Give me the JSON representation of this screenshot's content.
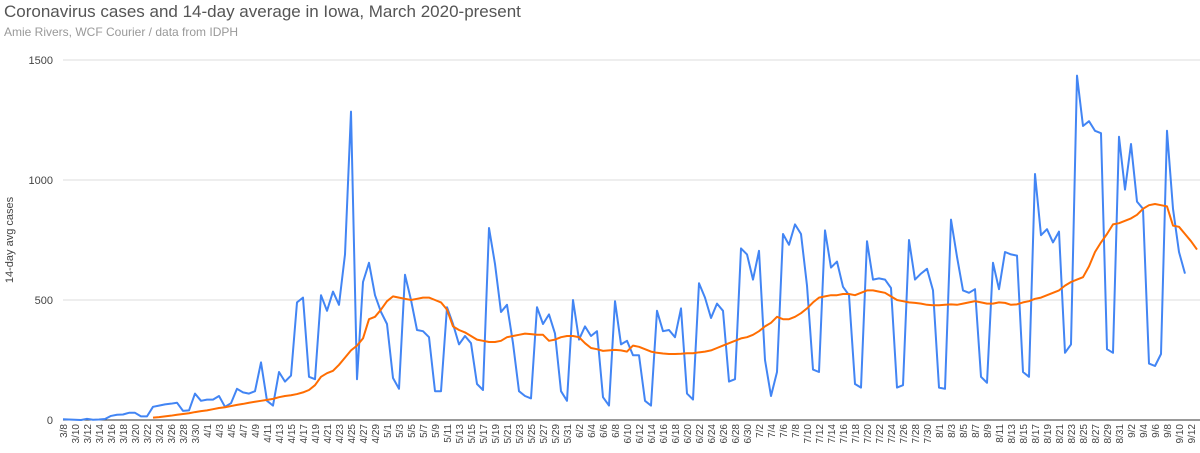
{
  "chart_data": {
    "type": "line",
    "title": "Coronavirus cases and 14-day average in Iowa, March 2020-present",
    "subtitle": "Amie Rivers, WCF Courier / data from IDPH",
    "y_label": "14-day avg cases",
    "categories": [
      "3/8",
      null,
      "3/10",
      null,
      "3/12",
      null,
      "3/14",
      null,
      "3/16",
      null,
      "3/18",
      null,
      "3/20",
      null,
      "3/22",
      null,
      "3/24",
      null,
      "3/26",
      null,
      "3/28",
      null,
      "3/30",
      null,
      "4/1",
      null,
      "4/3",
      null,
      "4/5",
      null,
      "4/7",
      null,
      "4/9",
      null,
      "4/11",
      null,
      "4/13",
      null,
      "4/15",
      null,
      "4/17",
      null,
      "4/19",
      null,
      "4/21",
      null,
      "4/23",
      null,
      "4/25",
      null,
      "4/27",
      null,
      "4/29",
      null,
      "5/1",
      null,
      "5/3",
      null,
      "5/5",
      null,
      "5/7",
      null,
      "5/9",
      null,
      "5/11",
      null,
      "5/13",
      null,
      "5/15",
      null,
      "5/17",
      null,
      "5/19",
      null,
      "5/21",
      null,
      "5/23",
      null,
      "5/25",
      null,
      "5/27",
      null,
      "5/29",
      null,
      "5/31",
      null,
      "6/2",
      null,
      "6/4",
      null,
      "6/6",
      null,
      "6/8",
      null,
      "6/10",
      null,
      "6/12",
      null,
      "6/14",
      null,
      "6/16",
      null,
      "6/18",
      null,
      "6/20",
      null,
      "6/22",
      null,
      "6/24",
      null,
      "6/26",
      null,
      "6/28",
      null,
      "6/30",
      null,
      "7/2",
      null,
      "7/4",
      null,
      "7/6",
      null,
      "7/8",
      null,
      "7/10",
      null,
      "7/12",
      null,
      "7/14",
      null,
      "7/16",
      null,
      "7/18",
      null,
      "7/20",
      null,
      "7/22",
      null,
      "7/24",
      null,
      "7/26",
      null,
      "7/28",
      null,
      "7/30",
      null,
      "8/1",
      null,
      "8/3",
      null,
      "8/5",
      null,
      "8/7",
      null,
      "8/9",
      null,
      "8/11",
      null,
      "8/13",
      null,
      "8/15",
      null,
      "8/17",
      null,
      "8/19",
      null,
      "8/21",
      null,
      "8/23",
      null,
      "8/25",
      null,
      "8/27",
      null,
      "8/29",
      null,
      "8/31",
      null,
      "9/2",
      null,
      "9/4",
      null,
      "9/6",
      null,
      "9/8",
      null,
      "9/10",
      null,
      "9/12",
      null
    ],
    "series": [
      {
        "color": "#4285f4",
        "values": [
          3,
          2,
          1,
          0,
          5,
          1,
          2,
          4,
          17,
          22,
          23,
          30,
          30,
          15,
          15,
          55,
          60,
          65,
          68,
          72,
          38,
          40,
          110,
          80,
          85,
          85,
          100,
          55,
          70,
          130,
          115,
          110,
          120,
          240,
          80,
          60,
          200,
          160,
          185,
          490,
          510,
          180,
          170,
          520,
          455,
          535,
          480,
          690,
          1285,
          170,
          575,
          655,
          520,
          450,
          400,
          175,
          130,
          605,
          500,
          375,
          370,
          345,
          120,
          120,
          470,
          400,
          315,
          350,
          320,
          150,
          125,
          800,
          650,
          450,
          480,
          320,
          120,
          100,
          90,
          470,
          400,
          440,
          360,
          120,
          80,
          500,
          335,
          390,
          350,
          370,
          95,
          60,
          495,
          315,
          330,
          270,
          270,
          80,
          60,
          455,
          370,
          375,
          345,
          465,
          110,
          85,
          570,
          510,
          425,
          485,
          455,
          160,
          170,
          715,
          690,
          585,
          705,
          250,
          100,
          200,
          775,
          730,
          815,
          775,
          560,
          210,
          200,
          790,
          635,
          660,
          555,
          520,
          150,
          135,
          745,
          585,
          590,
          585,
          550,
          135,
          145,
          750,
          585,
          610,
          630,
          540,
          135,
          130,
          835,
          680,
          540,
          530,
          545,
          180,
          155,
          655,
          545,
          700,
          690,
          685,
          200,
          180,
          1025,
          770,
          795,
          740,
          785,
          280,
          315,
          1435,
          1225,
          1245,
          1205,
          1195,
          295,
          280,
          1180,
          960,
          1150,
          910,
          880,
          235,
          225,
          275,
          1205,
          880,
          700,
          610,
          null,
          null
        ]
      },
      {
        "color": "#ff6d01",
        "values": [
          null,
          null,
          null,
          null,
          null,
          null,
          null,
          null,
          null,
          null,
          null,
          null,
          null,
          null,
          null,
          10,
          12,
          15,
          18,
          22,
          25,
          28,
          33,
          37,
          40,
          45,
          50,
          53,
          58,
          63,
          67,
          72,
          76,
          80,
          84,
          88,
          95,
          100,
          103,
          108,
          115,
          125,
          145,
          180,
          195,
          205,
          230,
          260,
          290,
          310,
          340,
          420,
          430,
          460,
          495,
          515,
          510,
          505,
          500,
          505,
          510,
          510,
          500,
          490,
          460,
          390,
          375,
          365,
          350,
          335,
          330,
          325,
          325,
          330,
          345,
          350,
          355,
          360,
          358,
          355,
          355,
          330,
          335,
          345,
          350,
          350,
          345,
          320,
          300,
          295,
          288,
          290,
          292,
          290,
          285,
          310,
          305,
          295,
          285,
          280,
          277,
          275,
          275,
          276,
          278,
          278,
          282,
          285,
          290,
          300,
          310,
          320,
          330,
          340,
          345,
          355,
          370,
          390,
          405,
          430,
          420,
          420,
          430,
          445,
          465,
          490,
          510,
          515,
          520,
          520,
          525,
          525,
          520,
          530,
          540,
          540,
          535,
          530,
          515,
          500,
          495,
          490,
          488,
          485,
          480,
          478,
          478,
          480,
          482,
          480,
          485,
          490,
          495,
          490,
          485,
          485,
          490,
          488,
          480,
          482,
          490,
          495,
          505,
          510,
          520,
          530,
          540,
          560,
          575,
          585,
          595,
          640,
          700,
          740,
          775,
          815,
          820,
          830,
          840,
          855,
          880,
          895,
          900,
          895,
          890,
          810,
          805,
          775,
          745,
          710
        ]
      }
    ],
    "ylim": [
      0,
      1500
    ],
    "yticks": [
      0,
      500,
      1000,
      1500
    ],
    "grid": true
  }
}
